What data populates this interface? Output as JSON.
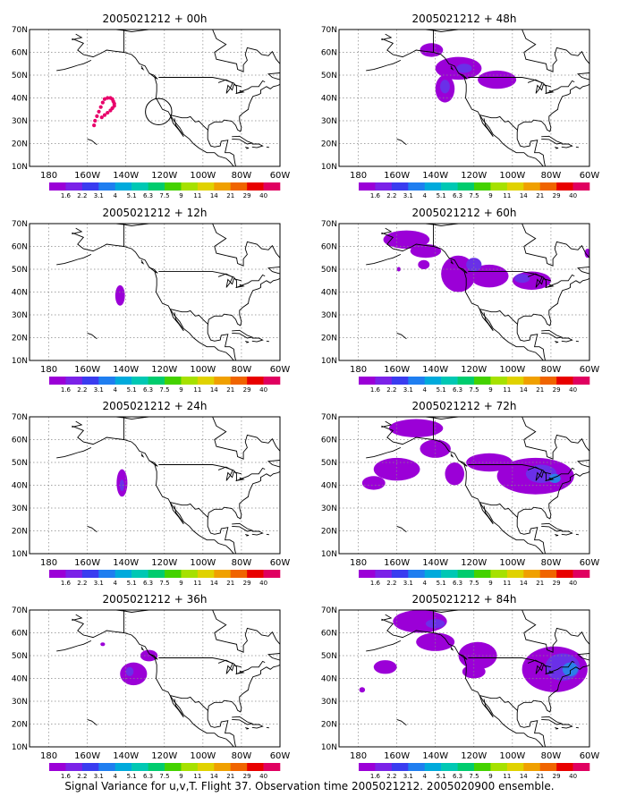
{
  "figure": {
    "caption": "Signal Variance for u,v,T. Flight 37. Observation time 2005021212. 2005020900 ensemble.",
    "colorbar_labels": [
      "1.6",
      "2.2",
      "3.1",
      "4",
      "5.1",
      "6.3",
      "7.5",
      "9",
      "11",
      "14",
      "21",
      "29",
      "40"
    ],
    "colorbar_colors": [
      "#9b00d7",
      "#7b22e8",
      "#3a3cf0",
      "#1f7ef0",
      "#00aadc",
      "#00c8b4",
      "#00cc6e",
      "#44d200",
      "#a6e100",
      "#e0d200",
      "#f0a000",
      "#f06400",
      "#e80000",
      "#e00060"
    ],
    "lat_labels": [
      "70N",
      "60N",
      "50N",
      "40N",
      "30N",
      "20N",
      "10N"
    ],
    "lon_labels": [
      "180",
      "160W",
      "140W",
      "120W",
      "100W",
      "80W",
      "60W"
    ]
  },
  "panels": [
    {
      "title": "2005021212 + 00h",
      "col": 0,
      "row": 0,
      "blobs": [],
      "dots": [
        [
          -152,
          38
        ],
        [
          -151,
          39.5
        ],
        [
          -149.5,
          40
        ],
        [
          -148,
          40
        ],
        [
          -147,
          39.5
        ],
        [
          -146.5,
          38.5
        ],
        [
          -146,
          37.5
        ],
        [
          -146,
          36.5
        ],
        [
          -147,
          35.5
        ],
        [
          -148,
          34.5
        ],
        [
          -149.5,
          33.5
        ],
        [
          -151,
          32.5
        ],
        [
          -152.5,
          31.5
        ],
        [
          -153,
          36
        ],
        [
          -154,
          34
        ],
        [
          -155,
          32
        ],
        [
          -156,
          30
        ],
        [
          -156.5,
          28
        ]
      ],
      "circle": [
        -123,
        34,
        6.5
      ]
    },
    {
      "title": "2005021212 + 12h",
      "col": 0,
      "row": 1,
      "blobs": [
        {
          "lon": -143,
          "lat": 38.5,
          "rx": 2.5,
          "ry": 4.5,
          "level": 0
        }
      ],
      "dots": []
    },
    {
      "title": "2005021212 + 24h",
      "col": 0,
      "row": 2,
      "blobs": [
        {
          "lon": -142,
          "lat": 41,
          "rx": 2.8,
          "ry": 6,
          "level": 0
        },
        {
          "lon": -142,
          "lat": 40,
          "rx": 1.2,
          "ry": 2.5,
          "level": 1
        }
      ],
      "dots": []
    },
    {
      "title": "2005021212 + 36h",
      "col": 0,
      "row": 3,
      "blobs": [
        {
          "lon": -136,
          "lat": 42,
          "rx": 7,
          "ry": 5,
          "level": 0
        },
        {
          "lon": -128,
          "lat": 50,
          "rx": 4.5,
          "ry": 2.5,
          "level": 0
        },
        {
          "lon": -152,
          "lat": 55,
          "rx": 1.2,
          "ry": 0.8,
          "level": 0
        },
        {
          "lon": -138,
          "lat": 43,
          "rx": 2,
          "ry": 2,
          "level": 1
        }
      ],
      "dots": []
    },
    {
      "title": "2005021212 + 48h",
      "col": 1,
      "row": 0,
      "blobs": [
        {
          "lon": -142,
          "lat": 61,
          "rx": 6,
          "ry": 3,
          "level": 0
        },
        {
          "lon": -128,
          "lat": 53,
          "rx": 12,
          "ry": 5,
          "level": 0
        },
        {
          "lon": -108,
          "lat": 48,
          "rx": 10,
          "ry": 4,
          "level": 0
        },
        {
          "lon": -135,
          "lat": 44,
          "rx": 5,
          "ry": 6,
          "level": 0
        },
        {
          "lon": -135,
          "lat": 45,
          "rx": 2.5,
          "ry": 3,
          "level": 1
        },
        {
          "lon": -125,
          "lat": 53,
          "rx": 4,
          "ry": 2,
          "level": 1
        }
      ],
      "dots": []
    },
    {
      "title": "2005021212 + 60h",
      "col": 1,
      "row": 1,
      "blobs": [
        {
          "lon": -155,
          "lat": 63,
          "rx": 12,
          "ry": 4,
          "level": 0
        },
        {
          "lon": -145,
          "lat": 58,
          "rx": 8,
          "ry": 3,
          "level": 0
        },
        {
          "lon": -146,
          "lat": 52,
          "rx": 3,
          "ry": 2,
          "level": 0
        },
        {
          "lon": -128,
          "lat": 48,
          "rx": 9,
          "ry": 8,
          "level": 0
        },
        {
          "lon": -112,
          "lat": 47,
          "rx": 10,
          "ry": 5,
          "level": 0
        },
        {
          "lon": -90,
          "lat": 45,
          "rx": 10,
          "ry": 4,
          "level": 0
        },
        {
          "lon": -61,
          "lat": 57,
          "rx": 1.5,
          "ry": 2,
          "level": 0
        },
        {
          "lon": -159,
          "lat": 50,
          "rx": 1,
          "ry": 1,
          "level": 0
        },
        {
          "lon": -120,
          "lat": 52,
          "rx": 4,
          "ry": 3,
          "level": 1
        },
        {
          "lon": -95,
          "lat": 46,
          "rx": 4,
          "ry": 2,
          "level": 1
        }
      ],
      "dots": []
    },
    {
      "title": "2005021212 + 72h",
      "col": 1,
      "row": 2,
      "blobs": [
        {
          "lon": -150,
          "lat": 65,
          "rx": 14,
          "ry": 4,
          "level": 0
        },
        {
          "lon": -160,
          "lat": 47,
          "rx": 12,
          "ry": 5,
          "level": 0
        },
        {
          "lon": -172,
          "lat": 41,
          "rx": 6,
          "ry": 3,
          "level": 0
        },
        {
          "lon": -140,
          "lat": 56,
          "rx": 8,
          "ry": 4,
          "level": 0
        },
        {
          "lon": -112,
          "lat": 50,
          "rx": 12,
          "ry": 4,
          "level": 0
        },
        {
          "lon": -88,
          "lat": 44,
          "rx": 20,
          "ry": 8,
          "level": 0
        },
        {
          "lon": -130,
          "lat": 45,
          "rx": 5,
          "ry": 5,
          "level": 0
        },
        {
          "lon": -85,
          "lat": 45,
          "rx": 8,
          "ry": 4,
          "level": 1
        },
        {
          "lon": -78,
          "lat": 43,
          "rx": 3,
          "ry": 2,
          "level": 2
        }
      ],
      "dots": []
    },
    {
      "title": "2005021212 + 84h",
      "col": 1,
      "row": 3,
      "blobs": [
        {
          "lon": -148,
          "lat": 65,
          "rx": 14,
          "ry": 5,
          "level": 0
        },
        {
          "lon": -140,
          "lat": 56,
          "rx": 10,
          "ry": 4,
          "level": 0
        },
        {
          "lon": -118,
          "lat": 50,
          "rx": 10,
          "ry": 6,
          "level": 0
        },
        {
          "lon": -166,
          "lat": 45,
          "rx": 6,
          "ry": 3,
          "level": 0
        },
        {
          "lon": -120,
          "lat": 43,
          "rx": 6,
          "ry": 3,
          "level": 0
        },
        {
          "lon": -78,
          "lat": 44,
          "rx": 17,
          "ry": 10,
          "level": 0
        },
        {
          "lon": -178,
          "lat": 35,
          "rx": 1.5,
          "ry": 1.2,
          "level": 0
        },
        {
          "lon": -74,
          "lat": 45,
          "rx": 9,
          "ry": 6,
          "level": 1
        },
        {
          "lon": -70,
          "lat": 44,
          "rx": 4,
          "ry": 3,
          "level": 2
        },
        {
          "lon": -140,
          "lat": 64,
          "rx": 5,
          "ry": 2,
          "level": 1
        }
      ],
      "dots": []
    }
  ]
}
